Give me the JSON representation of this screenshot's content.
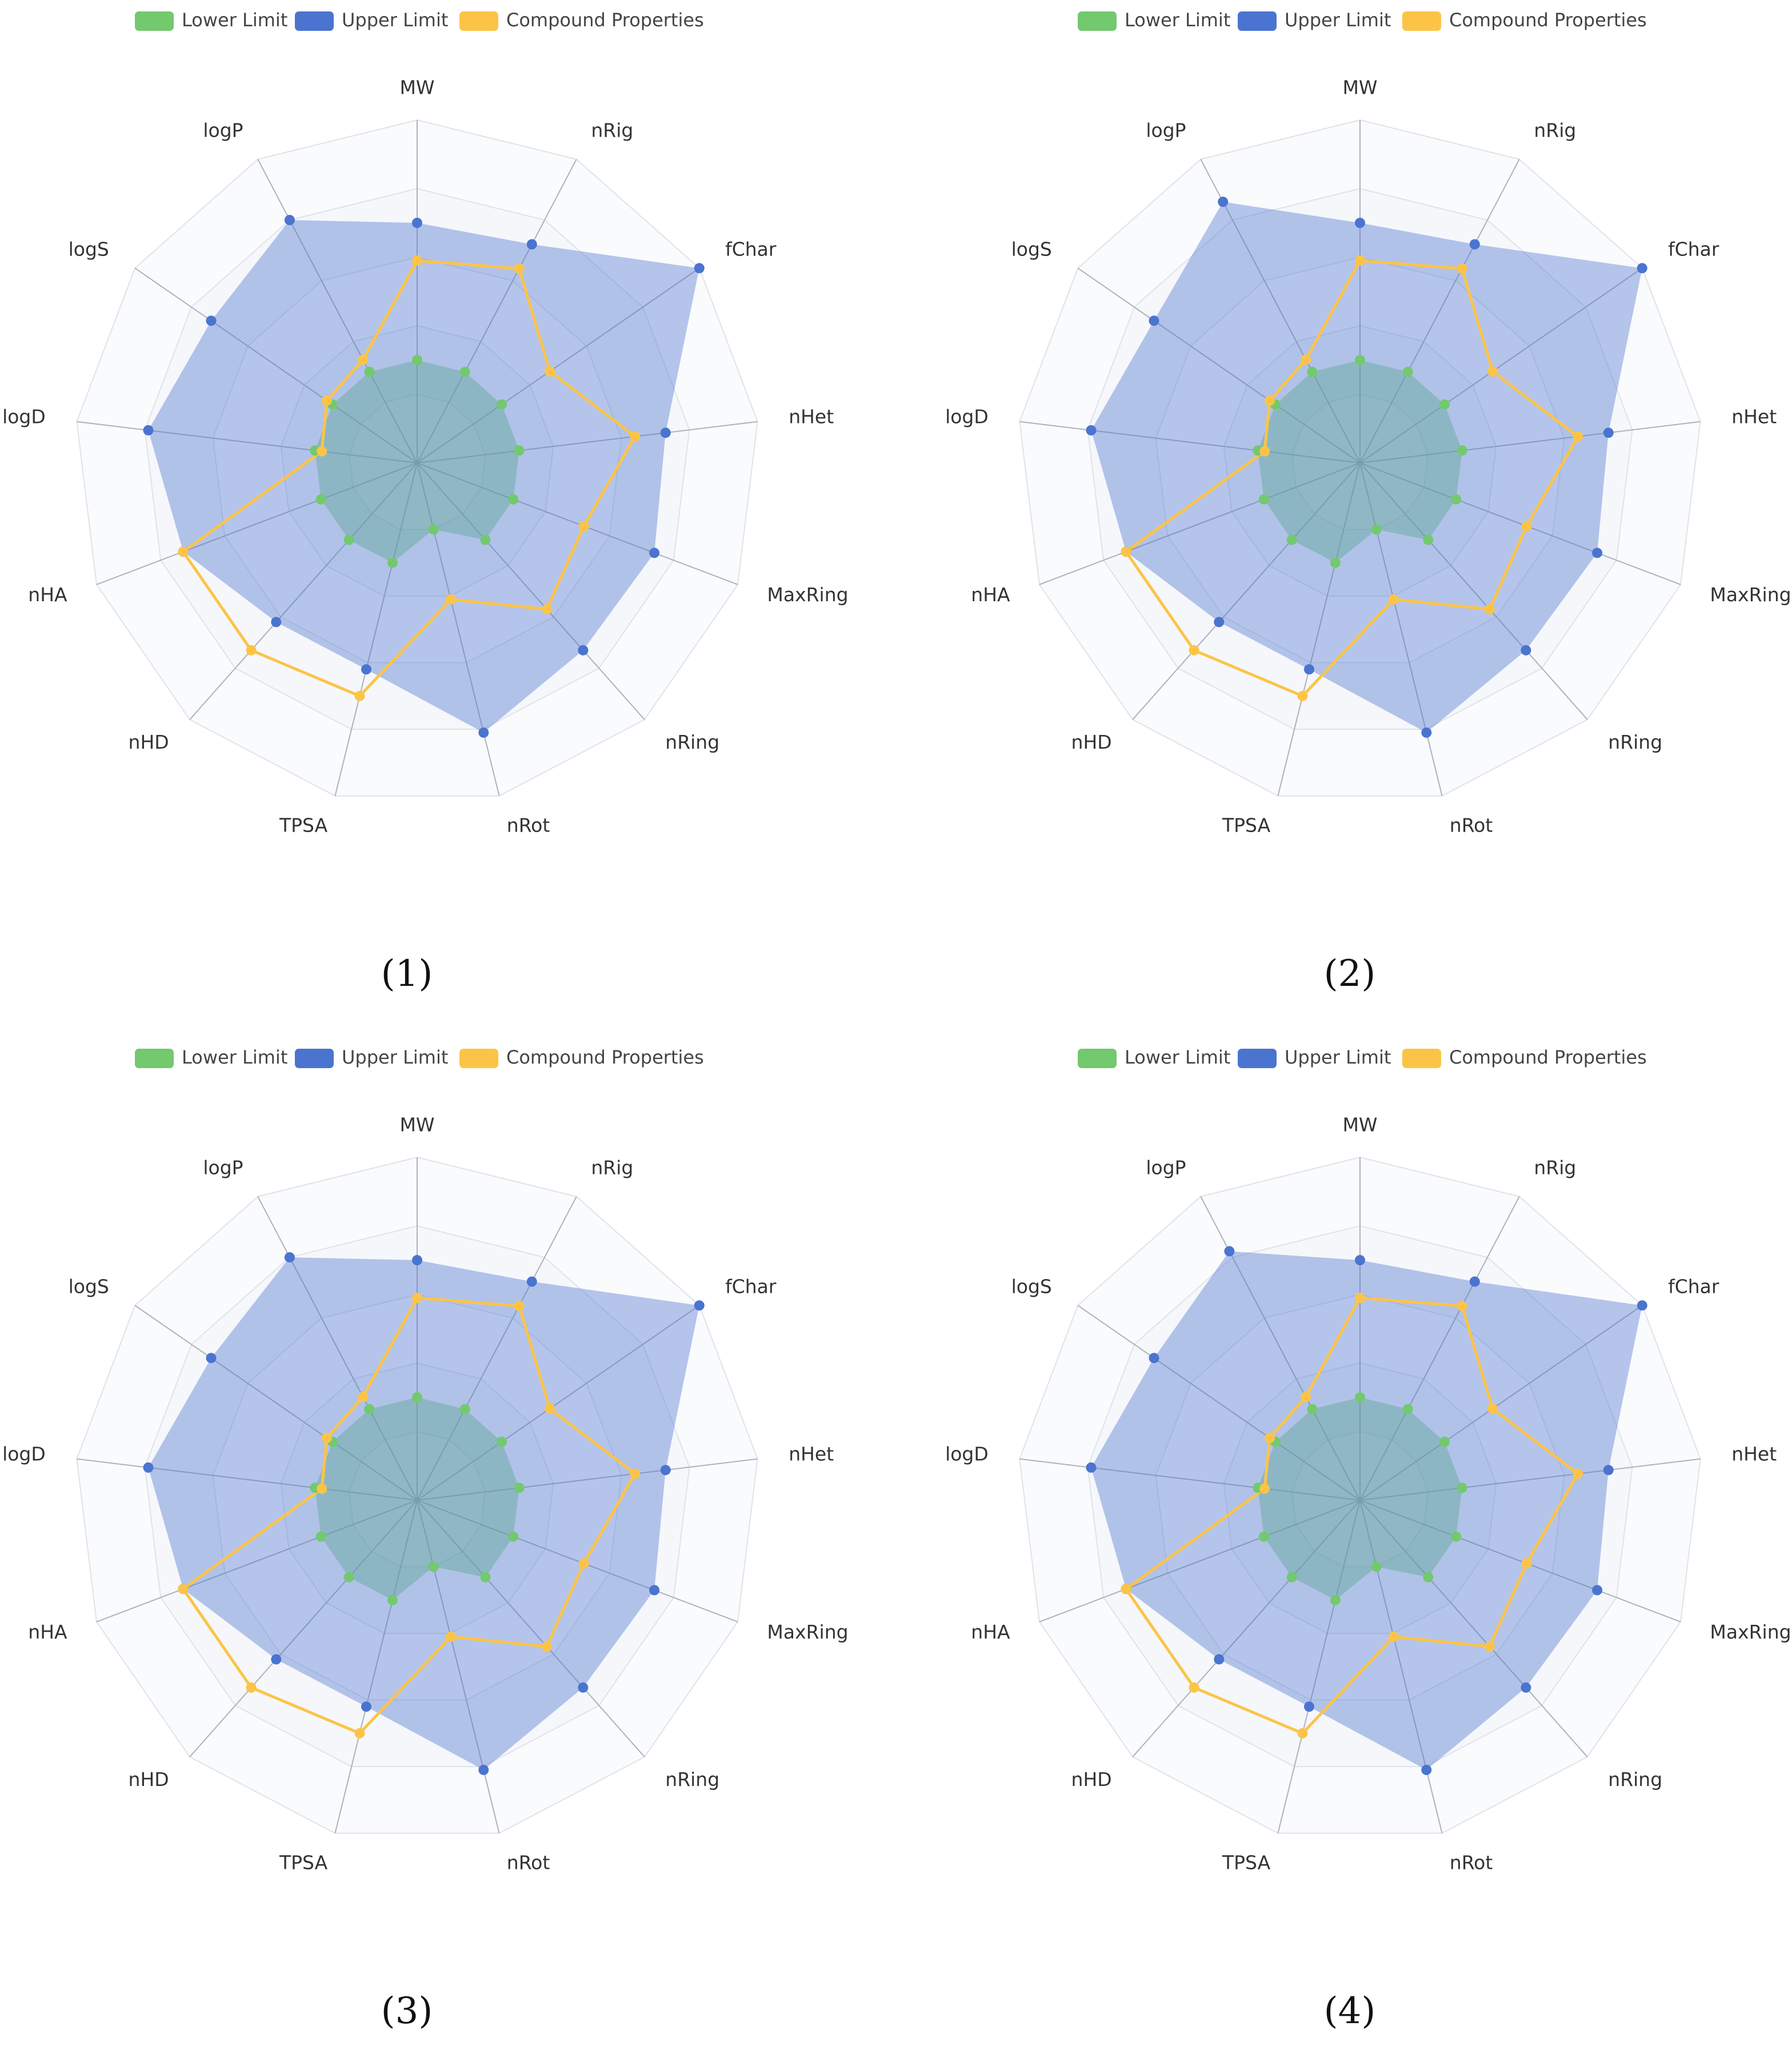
{
  "colors": {
    "lower": "#73c96e",
    "upper": "#4a74cf",
    "compound": "#fcc447",
    "grid": "#dfe3ea",
    "axis": "#aeb2ba",
    "band_fill": "#f5f7fb"
  },
  "legend": {
    "lower": "Lower Limit",
    "upper": "Upper Limit",
    "compound": "Compound Properties"
  },
  "chart_data": [
    {
      "type": "radar",
      "caption": "(1)",
      "indicators": [
        "MW",
        "nRig",
        "fChar",
        "nHet",
        "MaxRing",
        "nRing",
        "nRot",
        "TPSA",
        "nHD",
        "nHA",
        "logD",
        "logS",
        "logP"
      ],
      "max": 1,
      "series": [
        {
          "name": "Lower Limit",
          "values": [
            0.3,
            0.3,
            0.3,
            0.3,
            0.3,
            0.3,
            0.2,
            0.3,
            0.3,
            0.3,
            0.3,
            0.3,
            0.3
          ]
        },
        {
          "name": "Upper Limit",
          "values": [
            0.7,
            0.72,
            1.0,
            0.73,
            0.74,
            0.73,
            0.81,
            0.62,
            0.62,
            0.73,
            0.79,
            0.73,
            0.8
          ]
        },
        {
          "name": "Compound Properties",
          "values": [
            0.59,
            0.64,
            0.47,
            0.64,
            0.52,
            0.57,
            0.41,
            0.7,
            0.73,
            0.73,
            0.28,
            0.32,
            0.34
          ]
        }
      ]
    },
    {
      "type": "radar",
      "caption": "(2)",
      "indicators": [
        "MW",
        "nRig",
        "fChar",
        "nHet",
        "MaxRing",
        "nRing",
        "nRot",
        "TPSA",
        "nHD",
        "nHA",
        "logD",
        "logS",
        "logP"
      ],
      "max": 1,
      "series": [
        {
          "name": "Lower Limit",
          "values": [
            0.3,
            0.3,
            0.3,
            0.3,
            0.3,
            0.3,
            0.2,
            0.3,
            0.3,
            0.3,
            0.3,
            0.3,
            0.3
          ]
        },
        {
          "name": "Upper Limit",
          "values": [
            0.7,
            0.72,
            1.0,
            0.73,
            0.74,
            0.73,
            0.81,
            0.62,
            0.62,
            0.73,
            0.79,
            0.73,
            0.86
          ]
        },
        {
          "name": "Compound Properties",
          "values": [
            0.59,
            0.64,
            0.47,
            0.64,
            0.52,
            0.57,
            0.41,
            0.7,
            0.73,
            0.73,
            0.28,
            0.32,
            0.34
          ]
        }
      ]
    },
    {
      "type": "radar",
      "caption": "(3)",
      "indicators": [
        "MW",
        "nRig",
        "fChar",
        "nHet",
        "MaxRing",
        "nRing",
        "nRot",
        "TPSA",
        "nHD",
        "nHA",
        "logD",
        "logS",
        "logP"
      ],
      "max": 1,
      "series": [
        {
          "name": "Lower Limit",
          "values": [
            0.3,
            0.3,
            0.3,
            0.3,
            0.3,
            0.3,
            0.2,
            0.3,
            0.3,
            0.3,
            0.3,
            0.3,
            0.3
          ]
        },
        {
          "name": "Upper Limit",
          "values": [
            0.7,
            0.72,
            1.0,
            0.73,
            0.74,
            0.73,
            0.81,
            0.62,
            0.62,
            0.73,
            0.79,
            0.73,
            0.8
          ]
        },
        {
          "name": "Compound Properties",
          "values": [
            0.59,
            0.64,
            0.47,
            0.64,
            0.52,
            0.57,
            0.41,
            0.7,
            0.73,
            0.73,
            0.28,
            0.32,
            0.34
          ]
        }
      ]
    },
    {
      "type": "radar",
      "caption": "(4)",
      "indicators": [
        "MW",
        "nRig",
        "fChar",
        "nHet",
        "MaxRing",
        "nRing",
        "nRot",
        "TPSA",
        "nHD",
        "nHA",
        "logD",
        "logS",
        "logP"
      ],
      "max": 1,
      "series": [
        {
          "name": "Lower Limit",
          "values": [
            0.3,
            0.3,
            0.3,
            0.3,
            0.3,
            0.3,
            0.2,
            0.3,
            0.3,
            0.3,
            0.3,
            0.3,
            0.3
          ]
        },
        {
          "name": "Upper Limit",
          "values": [
            0.7,
            0.72,
            1.0,
            0.73,
            0.74,
            0.73,
            0.81,
            0.62,
            0.62,
            0.73,
            0.79,
            0.73,
            0.82
          ]
        },
        {
          "name": "Compound Properties",
          "values": [
            0.59,
            0.64,
            0.47,
            0.64,
            0.52,
            0.57,
            0.41,
            0.7,
            0.73,
            0.73,
            0.28,
            0.32,
            0.34
          ]
        }
      ]
    }
  ]
}
